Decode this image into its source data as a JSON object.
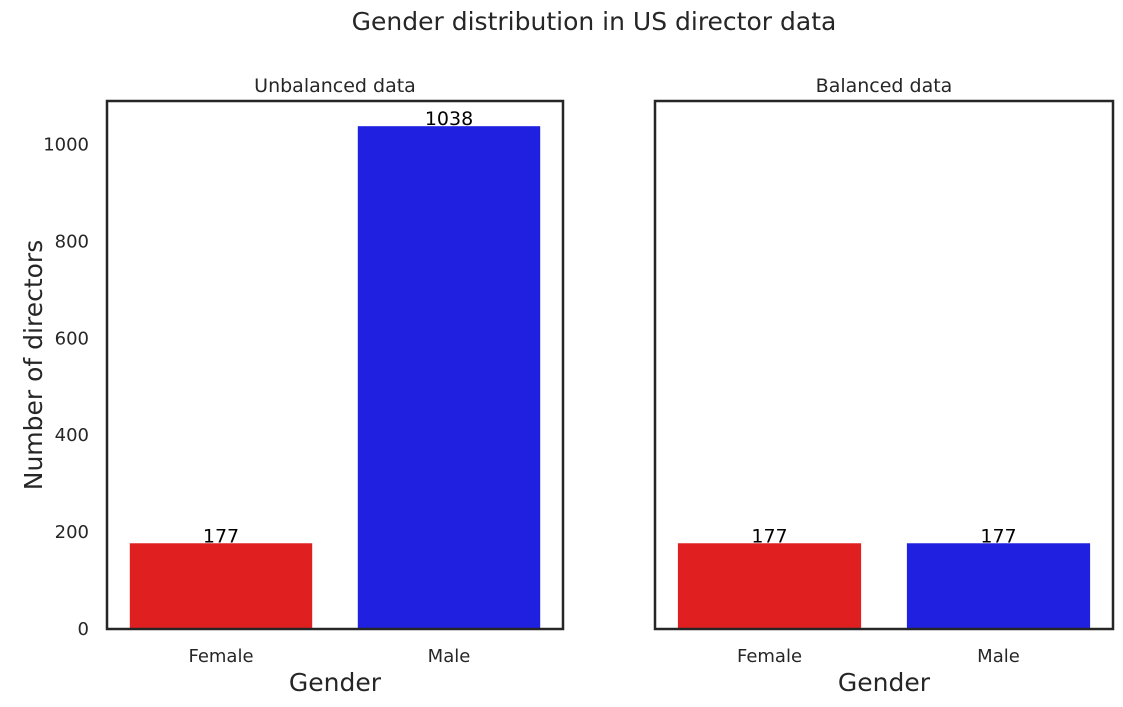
{
  "figure": {
    "title": "Gender distribution in US director data"
  },
  "chart_data": [
    {
      "type": "bar",
      "title": "Unbalanced data",
      "xlabel": "Gender",
      "ylabel": "Number of directors",
      "categories": [
        "Female",
        "Male"
      ],
      "values": [
        177,
        1038
      ],
      "bar_labels": [
        "177",
        "1038"
      ],
      "colors": [
        "#e02020",
        "#2020e0"
      ],
      "ylim": [
        0,
        1090
      ],
      "yticks": [
        0,
        200,
        400,
        600,
        800,
        1000
      ],
      "show_yticks": true,
      "grid": false
    },
    {
      "type": "bar",
      "title": "Balanced data",
      "xlabel": "Gender",
      "ylabel": "",
      "categories": [
        "Female",
        "Male"
      ],
      "values": [
        177,
        177
      ],
      "bar_labels": [
        "177",
        "177"
      ],
      "colors": [
        "#e02020",
        "#2020e0"
      ],
      "ylim": [
        0,
        1090
      ],
      "yticks": [],
      "show_yticks": false,
      "grid": false
    }
  ]
}
